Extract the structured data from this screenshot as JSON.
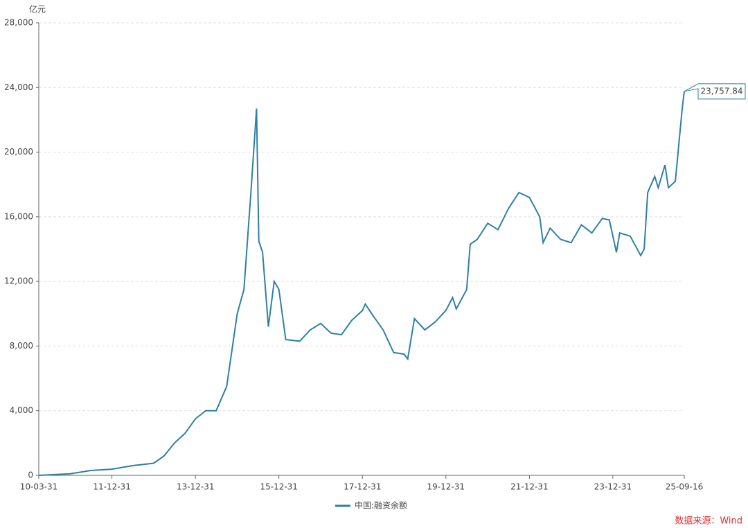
{
  "chart_data": {
    "type": "line",
    "y_label": "亿元",
    "source": "数据来源：Wind",
    "x": [
      "10-03-31",
      "10-12-31",
      "11-06-30",
      "11-12-31",
      "12-06-30",
      "12-12-31",
      "13-03-31",
      "13-06-30",
      "13-09-30",
      "13-12-31",
      "14-03-31",
      "14-06-30",
      "14-09-30",
      "14-12-31",
      "15-02-28",
      "15-04-30",
      "15-06-18",
      "15-07-08",
      "15-08-10",
      "15-09-30",
      "15-11-20",
      "15-12-31",
      "16-02-29",
      "16-06-30",
      "16-09-30",
      "16-12-31",
      "17-03-31",
      "17-06-30",
      "17-09-30",
      "17-12-31",
      "18-01-25",
      "18-03-31",
      "18-06-30",
      "18-09-30",
      "18-12-31",
      "19-01-31",
      "19-03-31",
      "19-06-30",
      "19-09-30",
      "19-12-31",
      "20-02-28",
      "20-03-31",
      "20-06-30",
      "20-07-31",
      "20-09-30",
      "20-12-31",
      "21-03-31",
      "21-06-30",
      "21-09-30",
      "21-12-31",
      "22-03-31",
      "22-04-30",
      "22-06-30",
      "22-09-30",
      "22-12-31",
      "23-03-31",
      "23-06-30",
      "23-09-30",
      "23-11-30",
      "24-01-31",
      "24-02-29",
      "24-05-31",
      "24-08-31",
      "24-09-30",
      "24-10-31",
      "24-12-31",
      "25-01-31",
      "25-03-31",
      "25-04-30",
      "25-06-30",
      "25-08-29",
      "25-09-16"
    ],
    "series": [
      {
        "name": "中国:融资余额",
        "color": "#2e7fa5",
        "values": [
          0,
          100,
          300,
          380,
          600,
          750,
          1200,
          2000,
          2600,
          3500,
          4000,
          4000,
          5500,
          10000,
          11500,
          17500,
          22700,
          14500,
          13800,
          9200,
          12000,
          11500,
          8400,
          8300,
          9000,
          9400,
          8800,
          8700,
          9600,
          10200,
          10600,
          9900,
          9000,
          7600,
          7500,
          7200,
          9700,
          9000,
          9500,
          10200,
          11000,
          10300,
          11500,
          14300,
          14600,
          15600,
          15200,
          16500,
          17500,
          17200,
          16000,
          14400,
          15300,
          14600,
          14400,
          15500,
          15000,
          15900,
          15800,
          13800,
          15000,
          14800,
          13600,
          14000,
          17500,
          18500,
          17800,
          19200,
          17800,
          18200,
          22700,
          23757.84
        ],
        "value_labels": [
          null,
          null,
          null,
          null,
          null,
          null,
          null,
          null,
          null,
          null,
          null,
          null,
          null,
          null,
          null,
          null,
          null,
          null,
          null,
          null,
          null,
          null,
          null,
          null,
          null,
          null,
          null,
          null,
          null,
          null,
          null,
          null,
          null,
          null,
          null,
          null,
          null,
          null,
          null,
          null,
          null,
          null,
          null,
          null,
          null,
          null,
          null,
          null,
          null,
          null,
          null,
          null,
          null,
          null,
          null,
          null,
          null,
          null,
          null,
          null,
          null,
          null,
          null,
          null,
          null,
          null,
          null,
          null,
          null,
          null,
          null,
          "23,757.84"
        ]
      }
    ],
    "xlim": [
      "10-03-31",
      "25-09-16"
    ],
    "xticks": [
      "10-03-31",
      "11-12-31",
      "13-12-31",
      "15-12-31",
      "17-12-31",
      "19-12-31",
      "21-12-31",
      "23-12-31",
      "25-09-16"
    ],
    "ylim": [
      0,
      28000
    ],
    "yticks": [
      0,
      {
        "value": 4000,
        "label": "4,000"
      },
      {
        "value": 8000,
        "label": "8,000"
      },
      {
        "value": 12000,
        "label": "12,000"
      },
      {
        "value": 16000,
        "label": "16,000"
      },
      {
        "value": 20000,
        "label": "20,000"
      },
      {
        "value": 24000,
        "label": "24,000"
      },
      {
        "value": 28000,
        "label": "28,000"
      }
    ],
    "grid": true
  }
}
